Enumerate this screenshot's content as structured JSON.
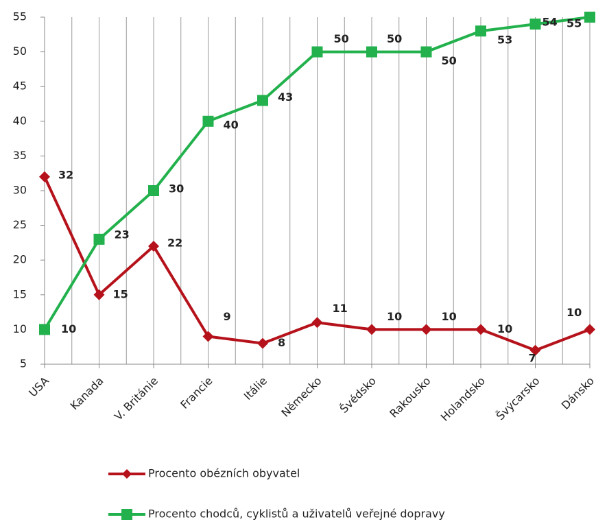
{
  "chart_data": {
    "type": "line",
    "categories": [
      "USA",
      "Kanada",
      "V. Británie",
      "Francie",
      "Itálie",
      "Německo",
      "Švédsko",
      "Rakousko",
      "Holandsko",
      "Švýcarsko",
      "Dánsko"
    ],
    "series": [
      {
        "name": "Procento obézních obyvatel",
        "color": "#b5121b",
        "marker": "diamond",
        "values": [
          32,
          15,
          22,
          9,
          8,
          11,
          10,
          10,
          10,
          7,
          10
        ]
      },
      {
        "name": "Procento chodců, cyklistů a uživatelů veřejné dopravy",
        "color": "#22b14c",
        "marker": "square",
        "values": [
          10,
          23,
          30,
          40,
          43,
          50,
          50,
          50,
          53,
          54,
          55
        ]
      }
    ],
    "ylim": [
      5,
      55
    ],
    "yticks": [
      5,
      10,
      15,
      20,
      25,
      30,
      35,
      40,
      45,
      50,
      55
    ],
    "grid": true,
    "legend": "bottom"
  }
}
